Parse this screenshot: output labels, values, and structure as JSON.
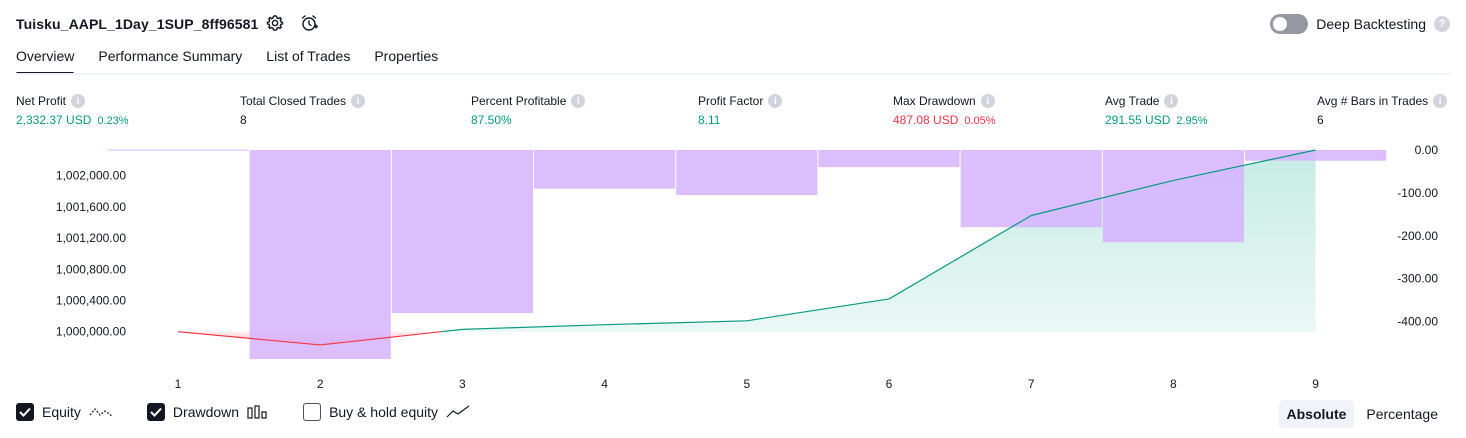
{
  "header": {
    "strategy_name": "Tuisku_AAPL_1Day_1SUP_8ff96581",
    "settings_icon": "gear-icon",
    "alert_icon": "alarm-clock-plus-icon",
    "deep_backtesting_label": "Deep Backtesting",
    "deep_backtesting_on": false,
    "help_glyph": "?"
  },
  "tabs": [
    {
      "label": "Overview",
      "active": true
    },
    {
      "label": "Performance Summary",
      "active": false
    },
    {
      "label": "List of Trades",
      "active": false
    },
    {
      "label": "Properties",
      "active": false
    }
  ],
  "metrics": [
    {
      "label": "Net Profit",
      "value": "2,332.37 USD",
      "pct": "0.23%",
      "color": "green"
    },
    {
      "label": "Total Closed Trades",
      "value": "8",
      "pct": "",
      "color": "dark"
    },
    {
      "label": "Percent Profitable",
      "value": "87.50%",
      "pct": "",
      "color": "green"
    },
    {
      "label": "Profit Factor",
      "value": "8.11",
      "pct": "",
      "color": "green"
    },
    {
      "label": "Max Drawdown",
      "value": "487.08 USD",
      "pct": "0.05%",
      "color": "red"
    },
    {
      "label": "Avg Trade",
      "value": "291.55 USD",
      "pct": "2.95%",
      "color": "green"
    },
    {
      "label": "Avg # Bars in Trades",
      "value": "6",
      "pct": "",
      "color": "dark"
    }
  ],
  "legend": {
    "equity_label": "Equity",
    "equity_checked": true,
    "drawdown_label": "Drawdown",
    "drawdown_checked": true,
    "buyhold_label": "Buy & hold equity",
    "buyhold_checked": false
  },
  "mode": {
    "absolute_label": "Absolute",
    "percentage_label": "Percentage",
    "active": "Absolute"
  },
  "colors": {
    "equity_line_up": "#089981",
    "equity_line_down": "#f23645",
    "equity_fill": "#c3ebe3",
    "drawdown_bar": "#d6b3ff",
    "accent_green": "#089981",
    "accent_red": "#f23645"
  },
  "chart_data": {
    "type": "area",
    "x": [
      1,
      2,
      3,
      4,
      5,
      6,
      7,
      8,
      9
    ],
    "series": [
      {
        "axis": "left",
        "values": [
          1000000.0,
          999830.0,
          1000030.0,
          1000090.0,
          1000140.0,
          1000420.0,
          1001490.0,
          1001940.0,
          1002330.0
        ]
      },
      {
        "axis": "right",
        "values": [
          0.0,
          -487.08,
          -380.0,
          -90.0,
          -105.0,
          -40.0,
          -180.0,
          -215.0,
          -25.0
        ]
      }
    ],
    "left_ticks": [
      "1,000,000.00",
      "1,000,400.00",
      "1,000,800.00",
      "1,001,200.00",
      "1,001,600.00",
      "1,002,000.00"
    ],
    "left_tick_values": [
      1000000,
      1000400,
      1000800,
      1001200,
      1001600,
      1002000
    ],
    "right_ticks": [
      "0.00",
      "-100.00",
      "-200.00",
      "-300.00",
      "-400.00"
    ],
    "right_tick_values": [
      0,
      -100,
      -200,
      -300,
      -400
    ],
    "ylim_left": [
      999650,
      1002330
    ],
    "ylim_right": [
      -487.08,
      0
    ],
    "xlabel": "",
    "ylabel": "",
    "grid": false
  }
}
